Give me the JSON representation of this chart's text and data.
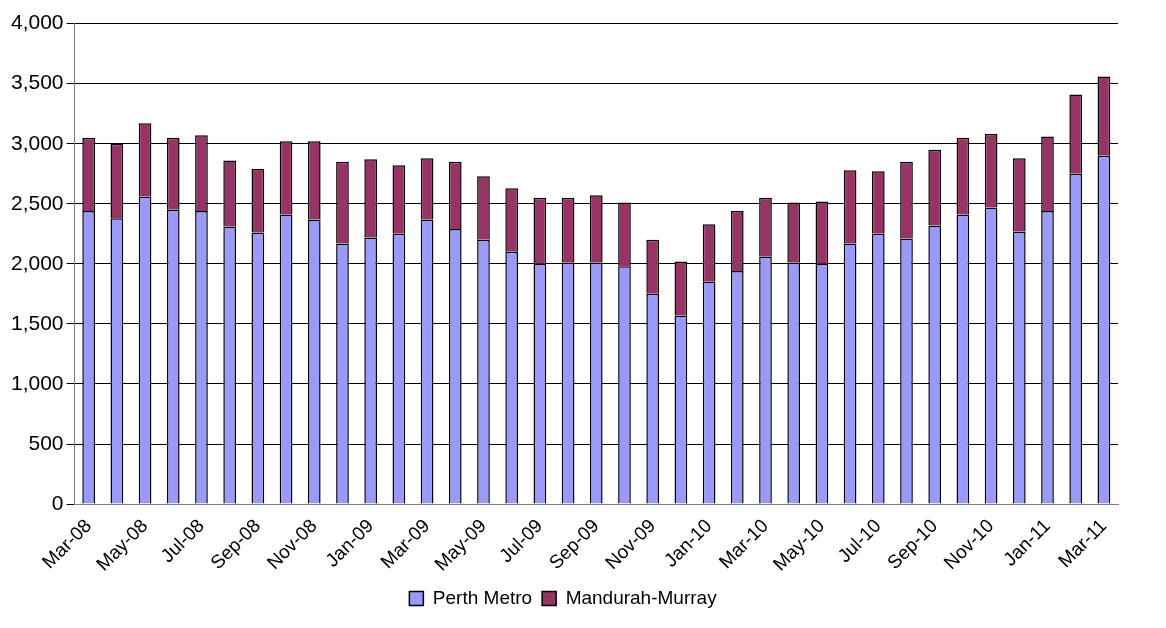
{
  "chart_data": {
    "type": "bar",
    "stacked": true,
    "categories": [
      "Mar-08",
      null,
      "May-08",
      null,
      "Jul-08",
      null,
      "Sep-08",
      null,
      "Nov-08",
      null,
      "Jan-09",
      null,
      "Mar-09",
      null,
      "May-09",
      null,
      "Jul-09",
      null,
      "Sep-09",
      null,
      "Nov-09",
      null,
      "Jan-10",
      null,
      "Mar-10",
      null,
      "May-10",
      null,
      "Jul-10",
      null,
      "Sep-10",
      null,
      "Nov-10",
      null,
      "Jan-11",
      null,
      "Mar-11"
    ],
    "series": [
      {
        "name": "Perth Metro",
        "color": "#9999ff",
        "values": [
          2440,
          2380,
          2560,
          2450,
          2440,
          2310,
          2260,
          2410,
          2370,
          2170,
          2220,
          2250,
          2370,
          2290,
          2200,
          2100,
          2000,
          2010,
          2010,
          1980,
          1750,
          1570,
          1850,
          1940,
          2060,
          2010,
          2000,
          2170,
          2250,
          2210,
          2320,
          2410,
          2470,
          2270,
          2440,
          2750,
          2900
        ]
      },
      {
        "name": "Mandurah-Murray",
        "color": "#993366",
        "values": [
          610,
          620,
          610,
          600,
          630,
          550,
          530,
          610,
          650,
          680,
          650,
          570,
          510,
          560,
          530,
          530,
          550,
          540,
          560,
          530,
          450,
          450,
          480,
          500,
          490,
          500,
          520,
          610,
          520,
          640,
          630,
          640,
          610,
          610,
          620,
          660,
          660
        ]
      }
    ],
    "ylim": [
      0,
      4000
    ],
    "yticks": [
      0,
      500,
      {
        "value": 1000,
        "label": "1,000"
      },
      {
        "value": 1500,
        "label": "1,500"
      },
      {
        "value": 2000,
        "label": "2,000"
      },
      {
        "value": 2500,
        "label": "2,500"
      },
      {
        "value": 3000,
        "label": "3,000"
      },
      {
        "value": 3500,
        "label": "3,500"
      },
      {
        "value": 4000,
        "label": "4,000"
      }
    ],
    "grid": "y",
    "legend": "bottom"
  }
}
